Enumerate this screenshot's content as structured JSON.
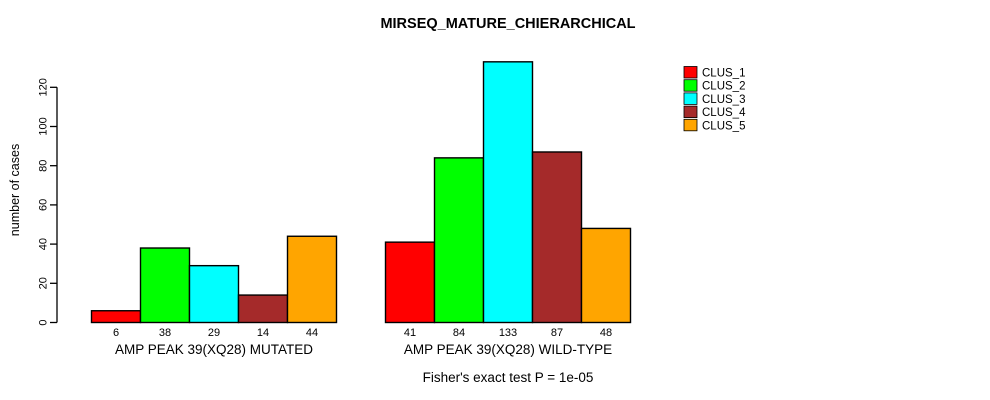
{
  "chart_data": {
    "type": "bar",
    "title": "MIRSEQ_MATURE_CHIERARCHICAL",
    "ylabel": "number of cases",
    "xlabel": "",
    "note": "Fisher's exact test P = 1e-05",
    "yticks": [
      0,
      20,
      40,
      60,
      80,
      100,
      120
    ],
    "ylim": [
      0,
      135
    ],
    "grid": false,
    "legend_position": "right-inside",
    "series": [
      {
        "name": "CLUS_1",
        "color": "#FF0000"
      },
      {
        "name": "CLUS_2",
        "color": "#00FF00"
      },
      {
        "name": "CLUS_3",
        "color": "#00FFFF"
      },
      {
        "name": "CLUS_4",
        "color": "#A52A2A"
      },
      {
        "name": "CLUS_5",
        "color": "#FFA500"
      }
    ],
    "groups": [
      {
        "label": "AMP PEAK 39(XQ28) MUTATED",
        "values": [
          6,
          38,
          29,
          14,
          44
        ]
      },
      {
        "label": "AMP PEAK 39(XQ28) WILD-TYPE",
        "values": [
          41,
          84,
          133,
          87,
          48
        ]
      }
    ],
    "colors": {
      "axis": "#000000",
      "bar_border": "#000000",
      "text": "#000000",
      "background": "#FFFFFF"
    }
  }
}
